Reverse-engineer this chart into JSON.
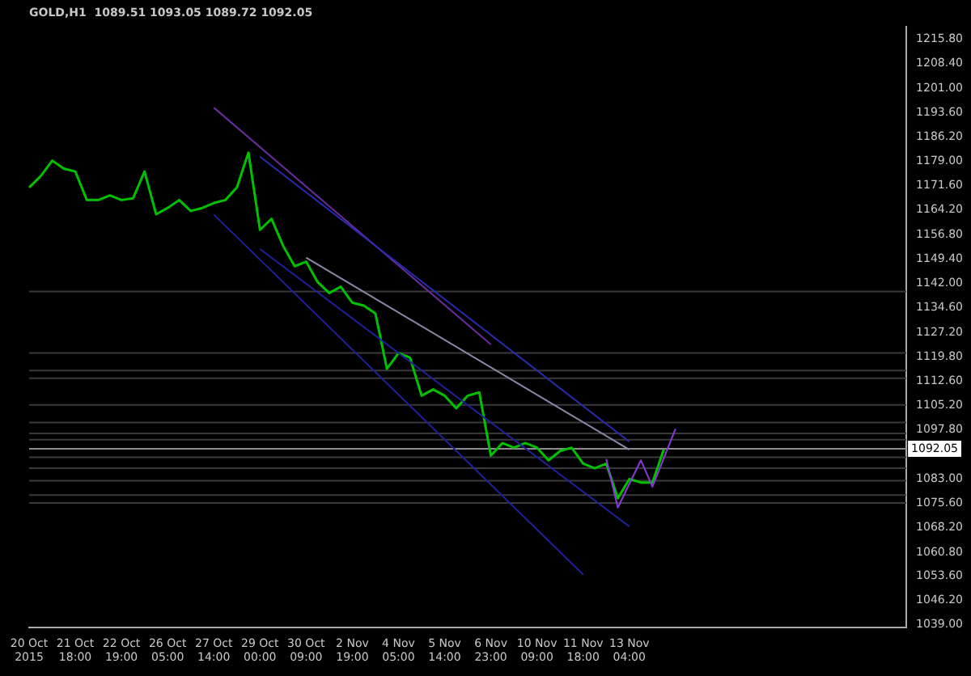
{
  "chart_data": {
    "type": "line",
    "title": "GOLD,H1  1089.51 1093.05 1089.72 1092.05",
    "categories": [
      "20 Oct 2015",
      null,
      null,
      null,
      "21 Oct 18:00",
      null,
      null,
      null,
      "22 Oct 19:00",
      null,
      null,
      null,
      "26 Oct 05:00",
      null,
      null,
      null,
      "27 Oct 14:00",
      null,
      null,
      null,
      "29 Oct 00:00",
      null,
      null,
      null,
      "30 Oct 09:00",
      null,
      null,
      null,
      "2 Nov 19:00",
      null,
      null,
      null,
      "4 Nov 05:00",
      null,
      null,
      null,
      "5 Nov 14:00",
      null,
      null,
      null,
      "6 Nov 23:00",
      null,
      null,
      null,
      "10 Nov 09:00",
      null,
      null,
      null,
      "11 Nov 18:00",
      null,
      null,
      null,
      "13 Nov 04:00",
      null,
      null,
      null,
      null,
      null,
      null,
      null,
      null,
      null,
      null,
      null,
      null,
      null,
      null,
      null,
      null,
      null,
      null,
      null,
      null,
      null,
      null,
      null,
      null
    ],
    "series": [
      {
        "color": "#00c000",
        "values": [
          1171.0,
          1174.4,
          1179.1,
          1176.7,
          1175.8,
          1167.2,
          1167.2,
          1168.6,
          1167.2,
          1167.7,
          1175.8,
          1162.9,
          1164.8,
          1167.2,
          1163.9,
          1164.8,
          1166.3,
          1167.2,
          1171.0,
          1181.5,
          1158.2,
          1161.5,
          1153.4,
          1147.2,
          1148.6,
          1142.4,
          1139.1,
          1141.0,
          1136.2,
          1135.3,
          1132.9,
          1116.2,
          1121.0,
          1119.6,
          1108.1,
          1110.0,
          1108.1,
          1104.3,
          1108.1,
          1109.1,
          1090.0,
          1093.8,
          1092.4,
          1093.8,
          1092.4,
          1088.6,
          1091.4,
          1092.4,
          1087.6,
          1086.2,
          1087.6,
          1077.1,
          1082.9,
          1081.9,
          1081.9,
          1092.0,
          null,
          null,
          null,
          null,
          null,
          null,
          null,
          null,
          null,
          null,
          null,
          null,
          null,
          null,
          null,
          null,
          null,
          null,
          null,
          null,
          null
        ]
      },
      {
        "color": "#6a2c9c",
        "values": [
          null,
          null,
          null,
          null,
          null,
          null,
          null,
          null,
          null,
          null,
          null,
          null,
          null,
          null,
          null,
          null,
          1195.1,
          null,
          null,
          null,
          null,
          null,
          null,
          null,
          null,
          null,
          null,
          null,
          null,
          null,
          null,
          null,
          null,
          null,
          null,
          null,
          null,
          null,
          null,
          null,
          1123.6,
          null,
          null,
          null,
          null,
          null,
          null,
          null,
          null,
          null,
          null,
          null,
          null,
          null,
          null,
          null,
          null,
          null,
          null,
          null,
          null,
          null,
          null,
          null,
          null,
          null,
          null,
          null,
          null,
          null,
          null,
          null,
          null,
          null,
          null,
          null,
          null
        ]
      },
      {
        "color": "#20209a",
        "values": [
          null,
          null,
          null,
          null,
          null,
          null,
          null,
          null,
          null,
          null,
          null,
          null,
          null,
          null,
          null,
          null,
          1162.8,
          null,
          null,
          null,
          null,
          null,
          null,
          null,
          null,
          null,
          null,
          null,
          null,
          null,
          null,
          null,
          null,
          null,
          null,
          null,
          null,
          null,
          null,
          null,
          null,
          null,
          null,
          null,
          null,
          null,
          null,
          null,
          1054.1,
          null,
          null,
          null,
          null,
          null,
          null,
          null,
          null,
          null,
          null,
          null,
          null,
          null,
          null,
          null,
          null,
          null,
          null,
          null,
          null,
          null,
          null,
          null,
          null,
          null,
          null,
          null,
          null
        ]
      },
      {
        "color": "#20209a",
        "values": [
          null,
          null,
          null,
          null,
          null,
          null,
          null,
          null,
          null,
          null,
          null,
          null,
          null,
          null,
          null,
          null,
          null,
          null,
          null,
          null,
          1152.4,
          null,
          null,
          null,
          null,
          null,
          null,
          null,
          null,
          null,
          null,
          null,
          null,
          null,
          null,
          null,
          null,
          null,
          null,
          null,
          null,
          null,
          null,
          null,
          null,
          null,
          null,
          null,
          null,
          null,
          null,
          null,
          1068.6,
          null,
          null,
          null,
          null,
          null,
          null,
          null,
          null,
          null,
          null,
          null,
          null,
          null,
          null,
          null,
          null,
          null,
          null,
          null,
          null,
          null,
          null,
          null,
          null
        ]
      },
      {
        "color": "#2a2ab0",
        "values": [
          null,
          null,
          null,
          null,
          null,
          null,
          null,
          null,
          null,
          null,
          null,
          null,
          null,
          null,
          null,
          null,
          null,
          null,
          null,
          null,
          1180.3,
          null,
          null,
          null,
          null,
          null,
          null,
          null,
          null,
          null,
          null,
          null,
          null,
          null,
          null,
          null,
          null,
          null,
          null,
          null,
          null,
          null,
          null,
          null,
          null,
          null,
          null,
          null,
          null,
          null,
          null,
          null,
          1094.2,
          null,
          null,
          null,
          null,
          null,
          null,
          null,
          null,
          null,
          null,
          null,
          null,
          null,
          null,
          null,
          null,
          null,
          null,
          null,
          null,
          null,
          null,
          null,
          null
        ]
      },
      {
        "color": "#8a8aa8",
        "values": [
          null,
          null,
          null,
          null,
          null,
          null,
          null,
          null,
          null,
          null,
          null,
          null,
          null,
          null,
          null,
          null,
          null,
          null,
          null,
          null,
          null,
          null,
          null,
          null,
          1149.8,
          null,
          null,
          null,
          null,
          null,
          null,
          null,
          null,
          null,
          null,
          null,
          null,
          null,
          null,
          null,
          null,
          null,
          null,
          null,
          null,
          null,
          null,
          null,
          null,
          null,
          null,
          null,
          1091.8,
          null,
          null,
          null,
          null,
          null,
          null,
          null,
          null,
          null,
          null,
          null,
          null,
          null,
          null,
          null,
          null,
          null,
          null,
          null,
          null,
          null,
          null,
          null,
          null
        ]
      },
      {
        "color": "#8a3ad8",
        "values": [
          null,
          null,
          null,
          null,
          null,
          null,
          null,
          null,
          null,
          null,
          null,
          null,
          null,
          null,
          null,
          null,
          null,
          null,
          null,
          null,
          null,
          null,
          null,
          null,
          null,
          null,
          null,
          null,
          null,
          null,
          null,
          null,
          null,
          null,
          null,
          null,
          null,
          null,
          null,
          null,
          null,
          null,
          null,
          null,
          null,
          null,
          null,
          null,
          null,
          null,
          1089.0,
          1074.3,
          null,
          1088.6,
          1080.6,
          null,
          1098.1,
          null,
          null,
          null,
          null,
          null,
          null,
          null,
          null,
          null,
          null,
          null,
          null,
          null,
          null,
          null,
          null,
          null,
          null,
          null,
          null
        ]
      }
    ],
    "ylim": [
      1038.0,
      1219.6
    ],
    "yticks": [
      {
        "value": 1215.8,
        "label": "1215.80"
      },
      {
        "value": 1208.4,
        "label": "1208.40"
      },
      {
        "value": 1201.0,
        "label": "1201.00"
      },
      {
        "value": 1193.6,
        "label": "1193.60"
      },
      {
        "value": 1186.2,
        "label": "1186.20"
      },
      {
        "value": 1179.0,
        "label": "1179.00"
      },
      {
        "value": 1171.6,
        "label": "1171.60"
      },
      {
        "value": 1164.2,
        "label": "1164.20"
      },
      {
        "value": 1156.8,
        "label": "1156.80"
      },
      {
        "value": 1149.4,
        "label": "1149.40"
      },
      {
        "value": 1142.0,
        "label": "1142.00"
      },
      {
        "value": 1134.6,
        "label": "1134.60"
      },
      {
        "value": 1127.2,
        "label": "1127.20"
      },
      {
        "value": 1119.8,
        "label": "1119.80"
      },
      {
        "value": 1112.6,
        "label": "1112.60"
      },
      {
        "value": 1105.2,
        "label": "1105.20"
      },
      {
        "value": 1097.8,
        "label": "1097.80"
      },
      {
        "value": 1083.0,
        "label": "1083.00"
      },
      {
        "value": 1075.6,
        "label": "1075.60"
      },
      {
        "value": 1068.2,
        "label": "1068.20"
      },
      {
        "value": 1060.8,
        "label": "1060.80"
      },
      {
        "value": 1053.6,
        "label": "1053.60"
      },
      {
        "value": 1046.2,
        "label": "1046.20"
      },
      {
        "value": 1039.0,
        "label": "1039.00"
      }
    ],
    "ref_lines": [
      {
        "axis": "y",
        "value": 1092.05,
        "label": "1092.05",
        "color": "#8c8c8c"
      },
      {
        "axis": "y",
        "value": 1139.6,
        "color": "#3a3a3a"
      },
      {
        "axis": "y",
        "value": 1121.0,
        "color": "#3a3a3a"
      },
      {
        "axis": "y",
        "value": 1115.7,
        "color": "#3a3a3a"
      },
      {
        "axis": "y",
        "value": 1113.4,
        "color": "#3a3a3a"
      },
      {
        "axis": "y",
        "value": 1105.3,
        "color": "#3a3a3a"
      },
      {
        "axis": "y",
        "value": 1100.0,
        "color": "#3a3a3a"
      },
      {
        "axis": "y",
        "value": 1096.7,
        "color": "#3a3a3a"
      },
      {
        "axis": "y",
        "value": 1094.8,
        "color": "#3a3a3a"
      },
      {
        "axis": "y",
        "value": 1089.5,
        "color": "#3a3a3a"
      },
      {
        "axis": "y",
        "value": 1086.2,
        "color": "#3a3a3a"
      },
      {
        "axis": "y",
        "value": 1082.4,
        "color": "#3a3a3a"
      },
      {
        "axis": "y",
        "value": 1078.1,
        "color": "#3a3a3a"
      },
      {
        "axis": "y",
        "value": 1075.7,
        "color": "#3a3a3a"
      }
    ]
  }
}
